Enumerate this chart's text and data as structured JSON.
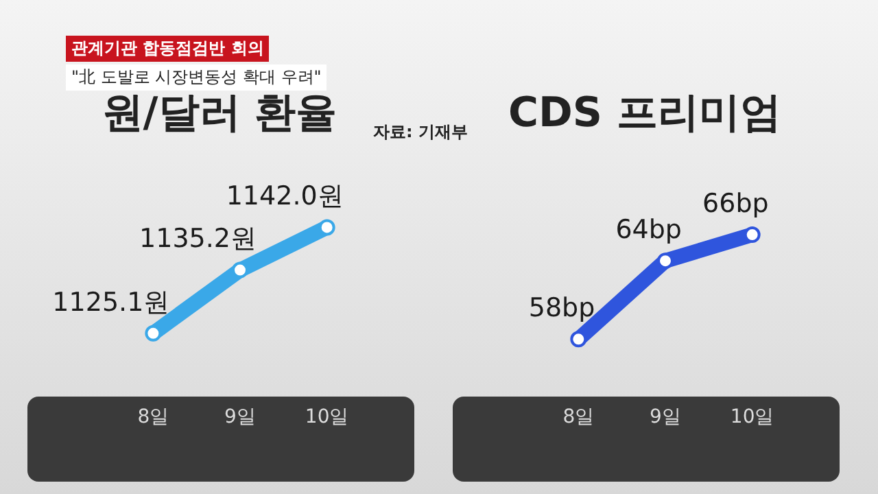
{
  "chart_data": [
    {
      "type": "line",
      "title": "원/달러 환율",
      "categories": [
        "8일",
        "9일",
        "10일"
      ],
      "series": [
        {
          "color": "#3aa8e8",
          "values": [
            1125.1,
            1135.2,
            1142.0
          ],
          "value_labels": [
            "1125.1원",
            "1135.2원",
            "1142.0원"
          ]
        }
      ],
      "annotations": [
        "관계기관 합동점검반 회의",
        "\"北 도발로 시장변동성 확대 우려\"",
        "자료: 기재부"
      ],
      "legend": false,
      "grid": false,
      "tick_labels": "x",
      "marker": "circle"
    },
    {
      "type": "line",
      "title": "CDS 프리미엄",
      "categories": [
        "8일",
        "9일",
        "10일"
      ],
      "series": [
        {
          "color": "#2f55dd",
          "values": [
            58,
            64,
            66
          ],
          "value_labels": [
            "58bp",
            "64bp",
            "66bp"
          ]
        }
      ],
      "legend": false,
      "grid": false,
      "tick_labels": "x",
      "marker": "circle"
    }
  ]
}
